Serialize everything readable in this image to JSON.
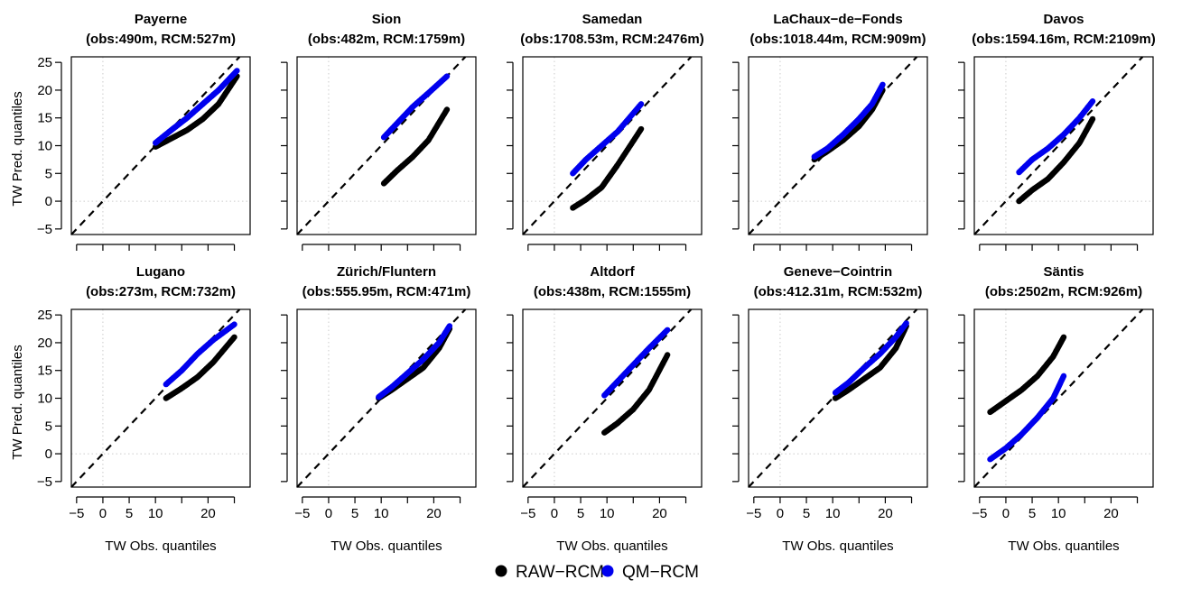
{
  "figure": {
    "xlabel": "TW Obs. quantiles",
    "ylabel": "TW Pred. quantiles",
    "legend": [
      {
        "label": "RAW−RCM",
        "color": "#000000"
      },
      {
        "label": "QM−RCM",
        "color": "#0000ee"
      }
    ],
    "legend_placement": "bottom-center"
  },
  "chart_data": [
    {
      "type": "scatter",
      "title": "Payerne",
      "subtitle": "(obs:490m, RCM:527m)",
      "xlim": [
        -6,
        28
      ],
      "ylim": [
        -6,
        26
      ],
      "xticks": [
        -5,
        0,
        5,
        10,
        15,
        20,
        25
      ],
      "xtick_labels": [
        "",
        "",
        "",
        "",
        "",
        "",
        ""
      ],
      "yticks": [
        -5,
        0,
        5,
        10,
        15,
        20,
        25
      ],
      "ytick_labels": [
        "−5",
        "0",
        "5",
        "10",
        "15",
        "20",
        "25"
      ],
      "reference_line": "y = x",
      "grid_lines": [
        0
      ],
      "series": [
        {
          "name": "RAW−RCM",
          "color": "#000000",
          "x": [
            10,
            13,
            16,
            19,
            22,
            25.5
          ],
          "y": [
            9.8,
            11.3,
            12.8,
            14.8,
            17.5,
            22.5
          ]
        },
        {
          "name": "QM−RCM",
          "color": "#0000ee",
          "x": [
            10,
            13,
            16,
            19,
            22,
            25.5
          ],
          "y": [
            10.5,
            12.8,
            15,
            17.5,
            20,
            23.5
          ]
        }
      ]
    },
    {
      "type": "scatter",
      "title": "Sion",
      "subtitle": "(obs:482m, RCM:1759m)",
      "xlim": [
        -6,
        28
      ],
      "ylim": [
        -6,
        26
      ],
      "xticks": [
        -5,
        0,
        5,
        10,
        15,
        20,
        25
      ],
      "xtick_labels": [
        "",
        "",
        "",
        "",
        "",
        "",
        ""
      ],
      "yticks": [
        -5,
        0,
        5,
        10,
        15,
        20,
        25
      ],
      "ytick_labels": [
        "",
        "",
        "",
        "",
        "",
        "",
        ""
      ],
      "reference_line": "y = x",
      "grid_lines": [
        0
      ],
      "series": [
        {
          "name": "RAW−RCM",
          "color": "#000000",
          "x": [
            10.5,
            13,
            16,
            19,
            22.5
          ],
          "y": [
            3.2,
            5.5,
            8,
            11,
            16.5
          ]
        },
        {
          "name": "QM−RCM",
          "color": "#0000ee",
          "x": [
            10.5,
            13,
            16,
            19,
            22.5
          ],
          "y": [
            11.5,
            14,
            17,
            19.5,
            22.5
          ]
        }
      ]
    },
    {
      "type": "scatter",
      "title": "Samedan",
      "subtitle": "(obs:1708.53m, RCM:2476m)",
      "xlim": [
        -6,
        28
      ],
      "ylim": [
        -6,
        26
      ],
      "xticks": [
        -5,
        0,
        5,
        10,
        15,
        20,
        25
      ],
      "xtick_labels": [
        "",
        "",
        "",
        "",
        "",
        "",
        ""
      ],
      "yticks": [
        -5,
        0,
        5,
        10,
        15,
        20,
        25
      ],
      "ytick_labels": [
        "",
        "",
        "",
        "",
        "",
        "",
        ""
      ],
      "reference_line": "y = x",
      "grid_lines": [
        0
      ],
      "series": [
        {
          "name": "RAW−RCM",
          "color": "#000000",
          "x": [
            3.5,
            6,
            9,
            12,
            16.5
          ],
          "y": [
            -1.2,
            0.3,
            2.5,
            6.5,
            13
          ]
        },
        {
          "name": "QM−RCM",
          "color": "#0000ee",
          "x": [
            3.5,
            6,
            9,
            12,
            16.5
          ],
          "y": [
            5,
            7.5,
            10,
            12.5,
            17.5
          ]
        }
      ]
    },
    {
      "type": "scatter",
      "title": "LaChaux−de−Fonds",
      "subtitle": "(obs:1018.44m, RCM:909m)",
      "xlim": [
        -6,
        28
      ],
      "ylim": [
        -6,
        26
      ],
      "xticks": [
        -5,
        0,
        5,
        10,
        15,
        20,
        25
      ],
      "xtick_labels": [
        "",
        "",
        "",
        "",
        "",
        "",
        ""
      ],
      "yticks": [
        -5,
        0,
        5,
        10,
        15,
        20,
        25
      ],
      "ytick_labels": [
        "",
        "",
        "",
        "",
        "",
        "",
        ""
      ],
      "reference_line": "y = x",
      "grid_lines": [
        0
      ],
      "series": [
        {
          "name": "RAW−RCM",
          "color": "#000000",
          "x": [
            6.5,
            9,
            12,
            15,
            17.5,
            19.5
          ],
          "y": [
            7.5,
            9,
            11,
            13.5,
            16.5,
            20
          ]
        },
        {
          "name": "QM−RCM",
          "color": "#0000ee",
          "x": [
            6.5,
            9,
            12,
            15,
            17.5,
            19.5
          ],
          "y": [
            8,
            9.5,
            12,
            14.8,
            17.5,
            21
          ]
        }
      ]
    },
    {
      "type": "scatter",
      "title": "Davos",
      "subtitle": "(obs:1594.16m, RCM:2109m)",
      "xlim": [
        -6,
        28
      ],
      "ylim": [
        -6,
        26
      ],
      "xticks": [
        -5,
        0,
        5,
        10,
        15,
        20,
        25
      ],
      "xtick_labels": [
        "",
        "",
        "",
        "",
        "",
        "",
        ""
      ],
      "yticks": [
        -5,
        0,
        5,
        10,
        15,
        20,
        25
      ],
      "ytick_labels": [
        "",
        "",
        "",
        "",
        "",
        "",
        ""
      ],
      "reference_line": "y = x",
      "grid_lines": [
        0
      ],
      "series": [
        {
          "name": "RAW−RCM",
          "color": "#000000",
          "x": [
            2.5,
            5,
            8,
            11,
            14,
            16.5
          ],
          "y": [
            0,
            2,
            4,
            7,
            10.5,
            14.8
          ]
        },
        {
          "name": "QM−RCM",
          "color": "#0000ee",
          "x": [
            2.5,
            5,
            8,
            11,
            14,
            16.5
          ],
          "y": [
            5.2,
            7.5,
            9.5,
            12,
            15,
            18
          ]
        }
      ]
    },
    {
      "type": "scatter",
      "title": "Lugano",
      "subtitle": "(obs:273m, RCM:732m)",
      "xlim": [
        -6,
        28
      ],
      "ylim": [
        -6,
        26
      ],
      "xticks": [
        -5,
        0,
        5,
        10,
        15,
        20,
        25
      ],
      "xtick_labels": [
        "−5",
        "0",
        "5",
        "10",
        "",
        "20",
        ""
      ],
      "yticks": [
        -5,
        0,
        5,
        10,
        15,
        20,
        25
      ],
      "ytick_labels": [
        "−5",
        "0",
        "5",
        "10",
        "15",
        "20",
        "25"
      ],
      "reference_line": "y = x",
      "grid_lines": [
        0
      ],
      "series": [
        {
          "name": "RAW−RCM",
          "color": "#000000",
          "x": [
            12,
            15,
            18,
            21,
            25
          ],
          "y": [
            10,
            11.8,
            13.8,
            16.5,
            21
          ]
        },
        {
          "name": "QM−RCM",
          "color": "#0000ee",
          "x": [
            12,
            15,
            18,
            21,
            25
          ],
          "y": [
            12.5,
            15,
            18,
            20.5,
            23.3
          ]
        }
      ]
    },
    {
      "type": "scatter",
      "title": "Zürich/Fluntern",
      "subtitle": "(obs:555.95m, RCM:471m)",
      "xlim": [
        -6,
        28
      ],
      "ylim": [
        -6,
        26
      ],
      "xticks": [
        -5,
        0,
        5,
        10,
        15,
        20,
        25
      ],
      "xtick_labels": [
        "−5",
        "0",
        "5",
        "10",
        "",
        "20",
        ""
      ],
      "yticks": [
        -5,
        0,
        5,
        10,
        15,
        20,
        25
      ],
      "ytick_labels": [
        "",
        "",
        "",
        "",
        "",
        "",
        ""
      ],
      "reference_line": "y = x",
      "grid_lines": [
        0
      ],
      "series": [
        {
          "name": "RAW−RCM",
          "color": "#000000",
          "x": [
            9.5,
            12,
            15,
            18,
            21,
            23
          ],
          "y": [
            10,
            11.5,
            13.5,
            15.5,
            19,
            22.5
          ]
        },
        {
          "name": "QM−RCM",
          "color": "#0000ee",
          "x": [
            9.5,
            12,
            15,
            18,
            21,
            23
          ],
          "y": [
            10.2,
            12,
            14.5,
            17,
            20,
            23
          ]
        }
      ]
    },
    {
      "type": "scatter",
      "title": "Altdorf",
      "subtitle": "(obs:438m, RCM:1555m)",
      "xlim": [
        -6,
        28
      ],
      "ylim": [
        -6,
        26
      ],
      "xticks": [
        -5,
        0,
        5,
        10,
        15,
        20,
        25
      ],
      "xtick_labels": [
        "−5",
        "0",
        "5",
        "10",
        "",
        "20",
        ""
      ],
      "yticks": [
        -5,
        0,
        5,
        10,
        15,
        20,
        25
      ],
      "ytick_labels": [
        "",
        "",
        "",
        "",
        "",
        "",
        ""
      ],
      "reference_line": "y = x",
      "grid_lines": [
        0
      ],
      "series": [
        {
          "name": "RAW−RCM",
          "color": "#000000",
          "x": [
            9.5,
            12,
            15,
            18,
            21.5
          ],
          "y": [
            3.8,
            5.5,
            8,
            11.5,
            17.8
          ]
        },
        {
          "name": "QM−RCM",
          "color": "#0000ee",
          "x": [
            9.5,
            12,
            15,
            18,
            21.5
          ],
          "y": [
            10.5,
            13,
            16,
            19,
            22.3
          ]
        }
      ]
    },
    {
      "type": "scatter",
      "title": "Geneve−Cointrin",
      "subtitle": "(obs:412.31m, RCM:532m)",
      "xlim": [
        -6,
        28
      ],
      "ylim": [
        -6,
        26
      ],
      "xticks": [
        -5,
        0,
        5,
        10,
        15,
        20,
        25
      ],
      "xtick_labels": [
        "−5",
        "0",
        "5",
        "10",
        "",
        "20",
        ""
      ],
      "yticks": [
        -5,
        0,
        5,
        10,
        15,
        20,
        25
      ],
      "ytick_labels": [
        "",
        "",
        "",
        "",
        "",
        "",
        ""
      ],
      "reference_line": "y = x",
      "grid_lines": [
        0
      ],
      "series": [
        {
          "name": "RAW−RCM",
          "color": "#000000",
          "x": [
            10.5,
            13,
            16,
            19,
            22,
            24
          ],
          "y": [
            10,
            11.5,
            13.5,
            15.5,
            19,
            23
          ]
        },
        {
          "name": "QM−RCM",
          "color": "#0000ee",
          "x": [
            10.5,
            13,
            16,
            19,
            22,
            24
          ],
          "y": [
            11,
            12.8,
            15.5,
            18,
            21,
            23.5
          ]
        }
      ]
    },
    {
      "type": "scatter",
      "title": "Säntis",
      "subtitle": "(obs:2502m, RCM:926m)",
      "xlim": [
        -6,
        28
      ],
      "ylim": [
        -6,
        26
      ],
      "xticks": [
        -5,
        0,
        5,
        10,
        15,
        20,
        25
      ],
      "xtick_labels": [
        "−5",
        "0",
        "5",
        "10",
        "",
        "20",
        ""
      ],
      "yticks": [
        -5,
        0,
        5,
        10,
        15,
        20,
        25
      ],
      "ytick_labels": [
        "",
        "",
        "",
        "",
        "",
        "",
        ""
      ],
      "reference_line": "y = x",
      "grid_lines": [
        0
      ],
      "series": [
        {
          "name": "RAW−RCM",
          "color": "#000000",
          "x": [
            -3,
            0,
            3,
            6,
            9,
            11
          ],
          "y": [
            7.5,
            9.5,
            11.5,
            14,
            17.5,
            21
          ]
        },
        {
          "name": "QM−RCM",
          "color": "#0000ee",
          "x": [
            -3,
            0,
            3,
            6,
            9,
            11
          ],
          "y": [
            -1,
            1,
            3.5,
            6.5,
            10,
            14
          ]
        }
      ]
    }
  ]
}
